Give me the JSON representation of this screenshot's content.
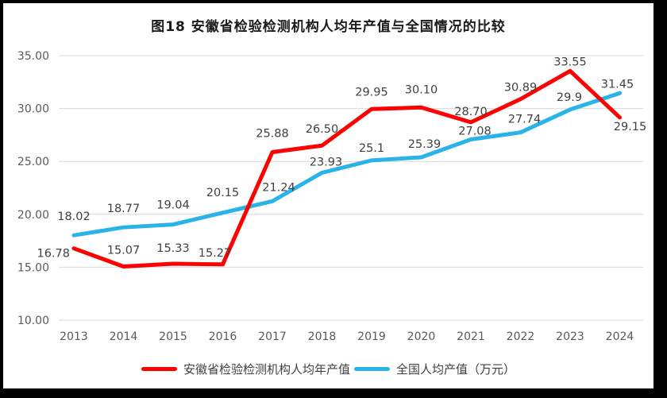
{
  "chart_data": {
    "type": "line",
    "title": "图18 安徽省检验检测机构人均年产值与全国情况的比较",
    "categories": [
      "2013",
      "2014",
      "2015",
      "2016",
      "2017",
      "2018",
      "2019",
      "2020",
      "2021",
      "2022",
      "2023",
      "2024"
    ],
    "series": [
      {
        "name": "安徽省检验检测机构人均年产值",
        "color": "#fe0000",
        "values": [
          16.78,
          15.07,
          15.33,
          15.27,
          25.88,
          26.5,
          29.95,
          30.1,
          28.7,
          30.89,
          33.55,
          29.15
        ],
        "labels": [
          "16.78",
          "15.07",
          "15.33",
          "15.27",
          "25.88",
          "26.50",
          "29.95",
          "30.10",
          "28.70",
          "30.89",
          "33.55",
          "29.15"
        ]
      },
      {
        "name": "全国人均产值（万元）",
        "color": "#2ab3e8",
        "values": [
          18.02,
          18.77,
          19.04,
          20.15,
          21.24,
          23.93,
          25.1,
          25.39,
          27.08,
          27.74,
          29.9,
          31.45
        ],
        "labels": [
          "18.02",
          "18.77",
          "19.04",
          "20.15",
          "21.24",
          "23.93",
          "25.1",
          "25.39",
          "27.08",
          "27.74",
          "29.9",
          "31.45"
        ]
      }
    ],
    "ylim": [
      10,
      35
    ],
    "yticks": [
      {
        "value": 10,
        "label": "10.00"
      },
      {
        "value": 15,
        "label": "15.00"
      },
      {
        "value": 20,
        "label": "20.00"
      },
      {
        "value": 25,
        "label": "25.00"
      },
      {
        "value": 30,
        "label": "30.00"
      },
      {
        "value": 35,
        "label": "35.00"
      }
    ],
    "grid": true,
    "legend_position": "bottom",
    "colors": {
      "grid": "#d9d9d9",
      "axis_label": "#595959",
      "data_label": "#404040",
      "frame": "#000000",
      "background": "#ffffff"
    }
  }
}
